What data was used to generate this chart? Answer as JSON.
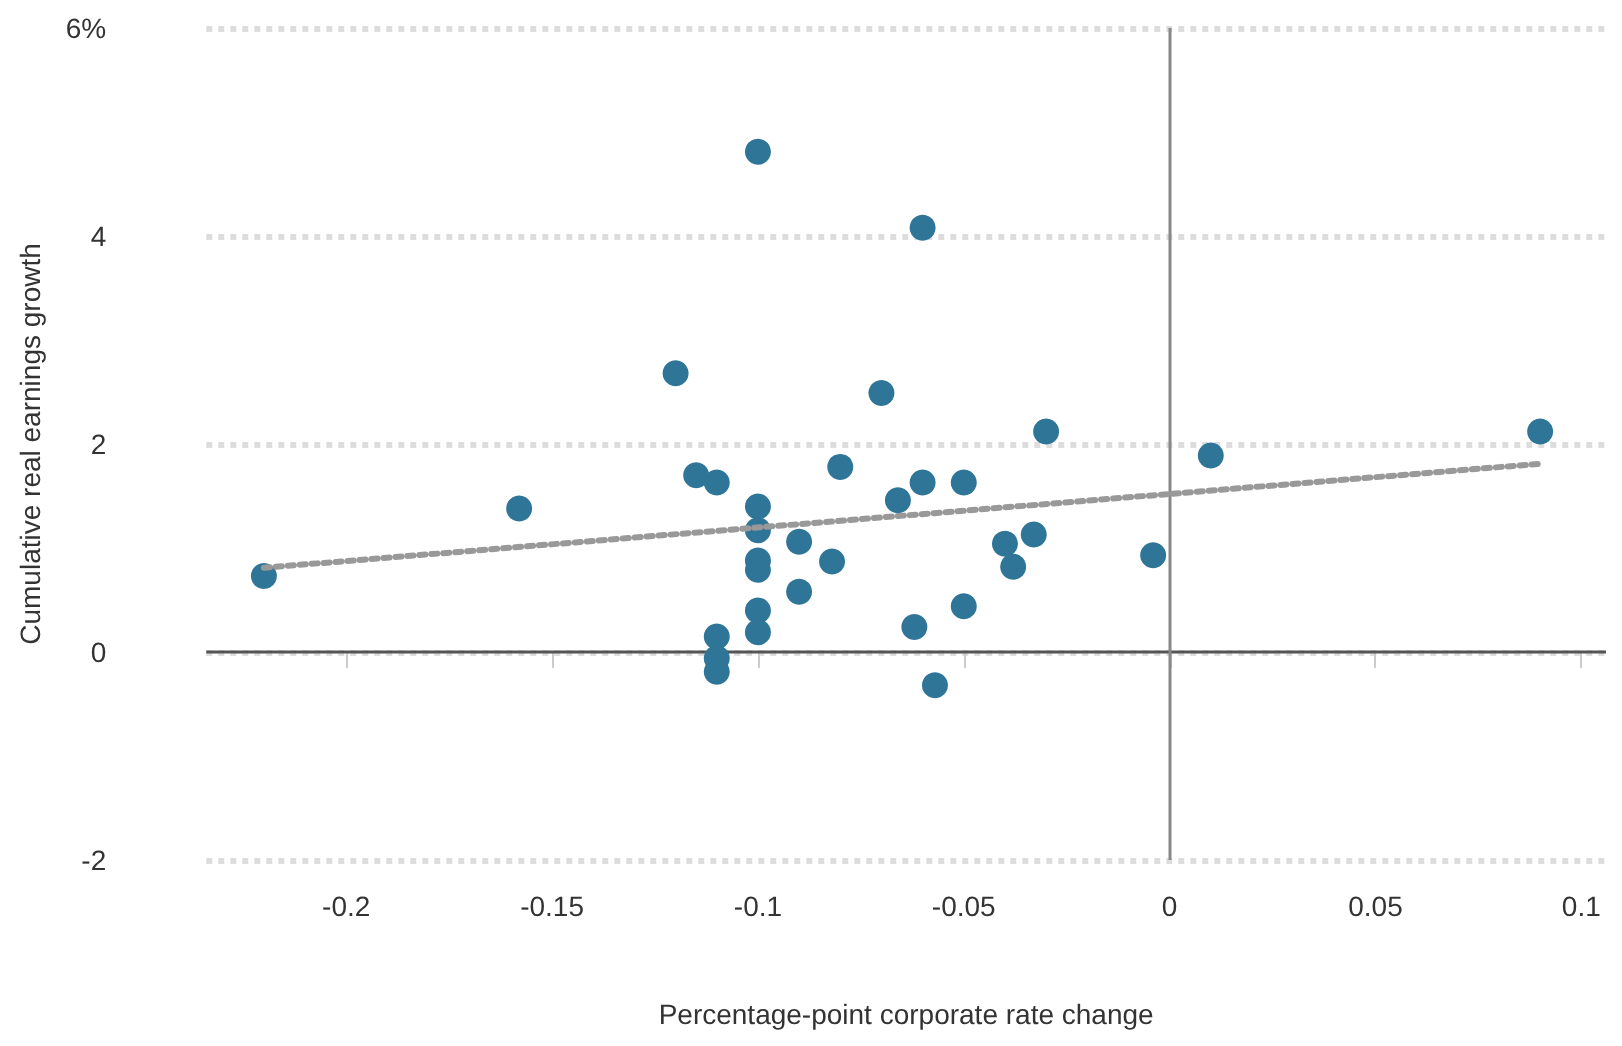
{
  "chart_data": {
    "type": "scatter",
    "xlabel": "Percentage-point corporate rate change",
    "ylabel": "Cumulative real earnings growth",
    "xlim": [
      -0.234,
      0.106
    ],
    "xticks": [
      -0.2,
      -0.15,
      -0.1,
      -0.05,
      0,
      0.05,
      0.1
    ],
    "ylim": [
      -2,
      6
    ],
    "yticks": [
      -2,
      0,
      2,
      4,
      {
        "value": 6,
        "label": "6%"
      }
    ],
    "grid": "y",
    "marker": "circle",
    "ref_lines": [
      {
        "axis": "y",
        "value": 0,
        "color": "#555555",
        "line_style": "solid"
      },
      {
        "axis": "x",
        "value": 0,
        "color": "#888888",
        "line_style": "solid"
      }
    ],
    "series": [
      {
        "color": "#2e7598",
        "x": [
          -0.22,
          -0.158,
          -0.1,
          -0.12,
          -0.115,
          -0.11,
          -0.1,
          -0.1,
          -0.1,
          -0.1,
          -0.1,
          -0.1,
          -0.11,
          -0.11,
          -0.11,
          -0.09,
          -0.09,
          -0.082,
          -0.08,
          -0.07,
          -0.06,
          -0.06,
          -0.05,
          -0.066,
          -0.03,
          0.01,
          0.09,
          -0.04,
          -0.033,
          -0.038,
          -0.004,
          -0.05,
          -0.062,
          -0.057
        ],
        "values": [
          0.73,
          1.38,
          4.81,
          2.68,
          1.7,
          1.63,
          1.4,
          1.17,
          0.88,
          0.79,
          0.4,
          0.19,
          0.15,
          -0.06,
          -0.19,
          1.06,
          0.58,
          0.87,
          1.78,
          2.49,
          4.08,
          1.63,
          1.63,
          1.46,
          2.12,
          1.89,
          2.12,
          1.04,
          1.13,
          0.82,
          0.93,
          0.44,
          0.24,
          -0.32
        ]
      },
      {
        "type": "line",
        "color": "#999999",
        "line_style": "dotted",
        "marker": "none",
        "x": [
          -0.22,
          0.09
        ],
        "values": [
          0.81,
          1.81
        ]
      }
    ]
  }
}
